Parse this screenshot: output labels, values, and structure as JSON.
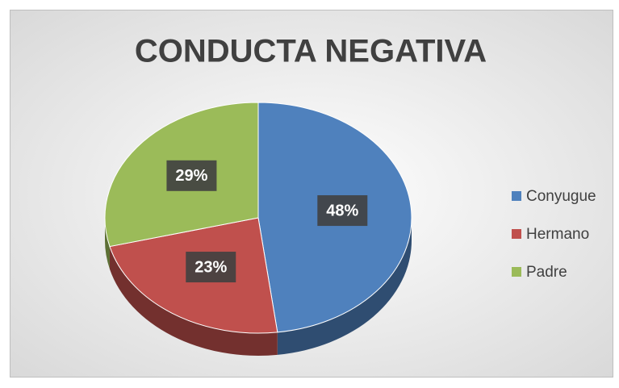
{
  "chart_data": {
    "type": "pie",
    "title": "CONDUCTA NEGATIVA",
    "categories": [
      "Conyugue",
      "Hermano",
      "Padre"
    ],
    "values": [
      48,
      23,
      29
    ],
    "value_labels": [
      "48%",
      "23%",
      "29%"
    ],
    "colors": [
      "#4f81bd",
      "#c0504d",
      "#9bbb59"
    ],
    "legend": "right"
  }
}
